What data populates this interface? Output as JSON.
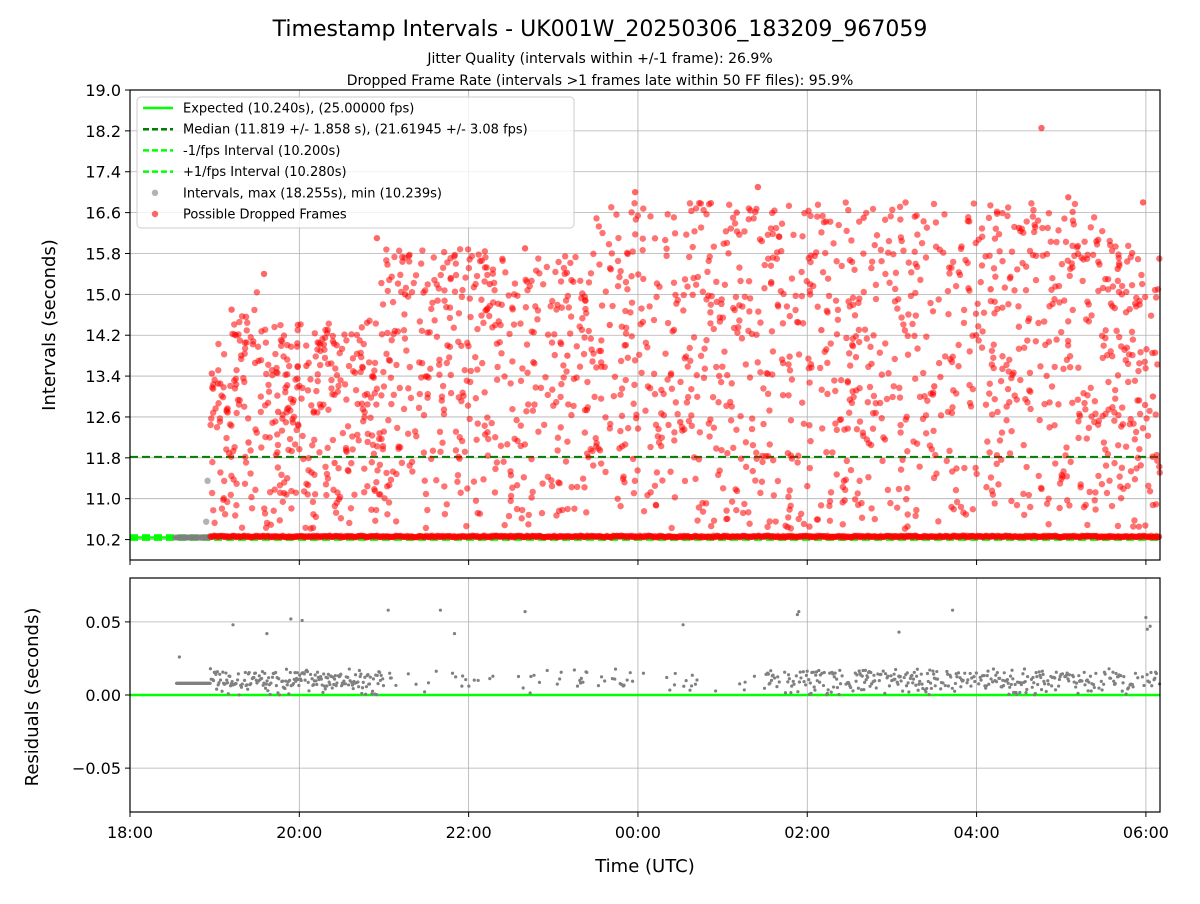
{
  "chart_data": {
    "type": "scatter",
    "title": "Timestamp Intervals - UK001W_20250306_183209_967059",
    "subtitle_lines": [
      "Jitter Quality (intervals within +/-1 frame): 26.9%",
      "Dropped Frame Rate (intervals >1 frames late within 50 FF files): 95.9%"
    ],
    "xlabel": "Time (UTC)",
    "x_axis": {
      "type": "time",
      "range": [
        "2025-03-06 18:00",
        "2025-03-07 06:10"
      ],
      "tick_labels": [
        "18:00",
        "20:00",
        "22:00",
        "00:00",
        "02:00",
        "04:00",
        "06:00"
      ],
      "grid": true
    },
    "panels": [
      {
        "name": "intervals",
        "ylabel": "Intervals (seconds)",
        "ylim": [
          9.8,
          19.0
        ],
        "y_ticks": [
          "10.2",
          "11.0",
          "11.8",
          "12.6",
          "13.4",
          "14.2",
          "15.0",
          "15.8",
          "16.6",
          "17.4",
          "18.2",
          "19.0"
        ],
        "grid": true,
        "legend": {
          "placement": "upper-left",
          "entries": [
            {
              "label": "Expected (10.240s), (25.00000 fps)",
              "style": "solid",
              "color": "#00ff00"
            },
            {
              "label": "Median (11.819 +/- 1.858 s), (21.61945 +/- 3.08 fps)",
              "style": "dashed",
              "color": "#007f00"
            },
            {
              "label": "-1/fps Interval (10.200s)",
              "style": "dashed",
              "color": "#00ff00"
            },
            {
              "label": "+1/fps Interval (10.280s)",
              "style": "dashed",
              "color": "#00ff00"
            },
            {
              "label": "Intervals, max (18.255s), min (10.239s)",
              "style": "marker",
              "color": "#808080"
            },
            {
              "label": "Possible Dropped Frames",
              "style": "marker",
              "color": "#ff0000"
            }
          ]
        },
        "reference_lines": [
          {
            "name": "Expected",
            "y": 10.24,
            "color": "#00ff00",
            "style": "solid"
          },
          {
            "name": "Median",
            "y": 11.819,
            "color": "#007f00",
            "style": "dashed"
          },
          {
            "name": "-1/fps Interval",
            "y": 10.2,
            "color": "#00ff00",
            "style": "dashed"
          },
          {
            "name": "+1/fps Interval",
            "y": 10.28,
            "color": "#00ff00",
            "style": "dashed"
          }
        ],
        "intervals_stats": {
          "max": 18.255,
          "min": 10.239,
          "median": 11.819,
          "median_std": 1.858
        },
        "series": [
          {
            "name": "Intervals, max (18.255s), min (10.239s)",
            "color": "#808080",
            "sampled_points": [
              [
                "2025-03-06 18:32",
                10.24
              ],
              [
                "2025-03-06 18:40",
                10.24
              ],
              [
                "2025-03-06 18:50",
                10.24
              ],
              [
                "2025-03-06 18:54",
                10.55
              ],
              [
                "2025-03-06 18:55",
                11.35
              ]
            ]
          },
          {
            "name": "Possible Dropped Frames",
            "color": "#ff0000",
            "sampled_points": [
              [
                "2025-03-06 18:58",
                13.45
              ],
              [
                "2025-03-06 19:12",
                14.7
              ],
              [
                "2025-03-06 19:24",
                12.1
              ],
              [
                "2025-03-06 19:35",
                15.4
              ],
              [
                "2025-03-06 19:45",
                12.7
              ],
              [
                "2025-03-06 20:05",
                13.6
              ],
              [
                "2025-03-06 20:25",
                11.7
              ],
              [
                "2025-03-06 20:55",
                16.1
              ],
              [
                "2025-03-06 21:15",
                15.0
              ],
              [
                "2025-03-06 21:45",
                14.0
              ],
              [
                "2025-03-06 22:15",
                15.2
              ],
              [
                "2025-03-06 22:40",
                15.9
              ],
              [
                "2025-03-06 23:10",
                13.8
              ],
              [
                "2025-03-06 23:40",
                14.4
              ],
              [
                "2025-03-06 23:58",
                17.0
              ],
              [
                "2025-03-07 00:30",
                12.5
              ],
              [
                "2025-03-07 01:10",
                16.6
              ],
              [
                "2025-03-07 01:25",
                17.1
              ],
              [
                "2025-03-07 02:10",
                14.3
              ],
              [
                "2025-03-07 02:40",
                16.5
              ],
              [
                "2025-03-07 03:30",
                13.2
              ],
              [
                "2025-03-07 04:10",
                15.1
              ],
              [
                "2025-03-07 04:30",
                16.3
              ],
              [
                "2025-03-07 04:46",
                18.255
              ],
              [
                "2025-03-07 05:05",
                16.9
              ],
              [
                "2025-03-07 05:40",
                15.5
              ],
              [
                "2025-03-07 05:58",
                16.8
              ],
              [
                "2025-03-07 06:05",
                13.0
              ]
            ]
          }
        ]
      },
      {
        "name": "residuals",
        "ylabel": "Residuals (seconds)",
        "ylim": [
          -0.08,
          0.08
        ],
        "y_ticks": [
          "−0.05",
          "0.00",
          "0.05"
        ],
        "grid": true,
        "reference_lines": [
          {
            "name": "zero",
            "y": 0.0,
            "color": "#00ff00",
            "style": "solid"
          }
        ],
        "series": [
          {
            "name": "residuals",
            "color": "#808080",
            "sampled_points": [
              [
                "2025-03-06 18:35",
                0.026
              ],
              [
                "2025-03-06 18:45",
                0.008
              ],
              [
                "2025-03-06 19:13",
                0.048
              ],
              [
                "2025-03-06 19:37",
                0.042
              ],
              [
                "2025-03-06 19:54",
                0.052
              ],
              [
                "2025-03-06 20:02",
                0.051
              ],
              [
                "2025-03-06 21:03",
                0.058
              ],
              [
                "2025-03-06 21:40",
                0.058
              ],
              [
                "2025-03-06 21:50",
                0.042
              ],
              [
                "2025-03-06 22:40",
                0.057
              ],
              [
                "2025-03-07 00:32",
                0.048
              ],
              [
                "2025-03-07 01:53",
                0.055
              ],
              [
                "2025-03-07 01:54",
                0.057
              ],
              [
                "2025-03-07 03:05",
                0.043
              ],
              [
                "2025-03-07 03:43",
                0.058
              ],
              [
                "2025-03-07 06:00",
                0.053
              ],
              [
                "2025-03-07 06:01",
                0.045
              ],
              [
                "2025-03-07 06:03",
                0.047
              ]
            ]
          }
        ]
      }
    ]
  }
}
